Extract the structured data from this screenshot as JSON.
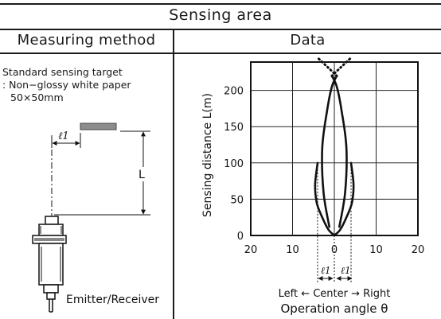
{
  "table": {
    "title": "Sensing area",
    "col_left_header": "Measuring method",
    "col_right_header": "Data"
  },
  "method": {
    "target_line1": "Standard sensing target",
    "target_line2": ": Non−glossy white paper",
    "target_line3": "50×50mm",
    "l1_symbol": "ℓ1",
    "distance_symbol": "L",
    "device_label": "Emitter/Receiver"
  },
  "chart_data": {
    "type": "line",
    "title": "",
    "xlabel": "Operation angle θ",
    "ylabel": "Sensing distance L(m)",
    "x_tick_labels": [
      "20",
      "10",
      "0",
      "10",
      "20"
    ],
    "y_tick_labels": [
      "0",
      "50",
      "100",
      "150",
      "200"
    ],
    "xlim": [
      -20,
      20
    ],
    "ylim": [
      0,
      240
    ],
    "x_direction_label": "Left ← Center → Right",
    "l1_marker": "ℓ1",
    "grid": true,
    "series": [
      {
        "style": "solid",
        "x": [
          -4,
          -4.6,
          -4.2,
          -2.9,
          -1.4,
          0
        ],
        "y": [
          100,
          70,
          45,
          25,
          8,
          0
        ]
      },
      {
        "style": "solid",
        "x": [
          4,
          4.6,
          4.2,
          2.9,
          1.4,
          0
        ],
        "y": [
          100,
          70,
          45,
          25,
          8,
          0
        ]
      },
      {
        "style": "solid",
        "x": [
          -1.2,
          -2.6,
          -2.9,
          -1.8,
          -0.6,
          0.6
        ],
        "y": [
          12,
          60,
          120,
          170,
          205,
          220
        ]
      },
      {
        "style": "solid",
        "x": [
          1.2,
          2.6,
          2.9,
          1.8,
          0.6,
          -0.6
        ],
        "y": [
          12,
          60,
          120,
          170,
          205,
          220
        ]
      },
      {
        "style": "dotted",
        "x": [
          0.6,
          -1.6,
          -4
        ],
        "y": [
          220,
          232,
          245
        ]
      },
      {
        "style": "dotted",
        "x": [
          -0.6,
          1.6,
          4
        ],
        "y": [
          220,
          232,
          245
        ]
      }
    ]
  }
}
